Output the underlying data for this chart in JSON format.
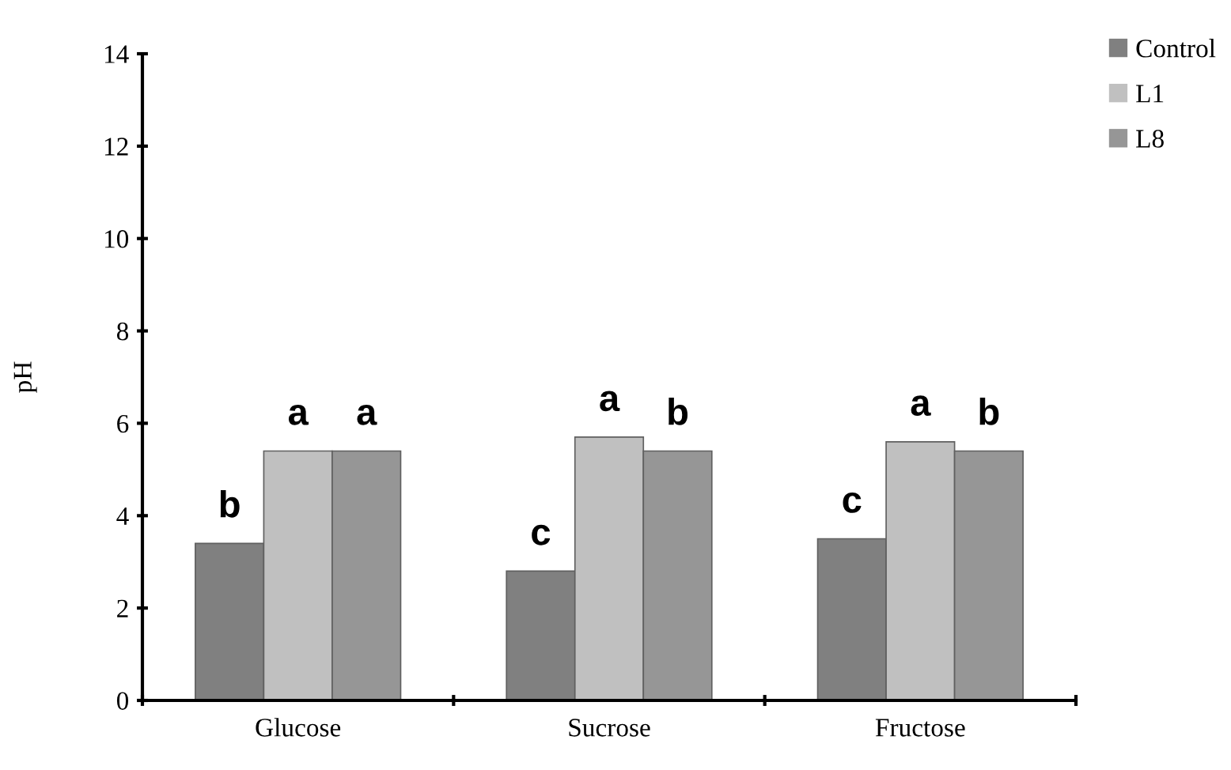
{
  "chart_data": {
    "type": "bar",
    "ylabel": "pH",
    "categories": [
      "Glucose",
      "Sucrose",
      "Fructose"
    ],
    "series": [
      {
        "name": "Control",
        "color": "#808080",
        "values": [
          3.4,
          2.8,
          3.5
        ]
      },
      {
        "name": "L1",
        "color": "#c0c0c0",
        "values": [
          5.4,
          5.7,
          5.6
        ]
      },
      {
        "name": "L8",
        "color": "#969696",
        "values": [
          5.4,
          5.4,
          5.4
        ]
      }
    ],
    "ylim": [
      0,
      14
    ],
    "yticks": [
      0,
      2,
      4,
      6,
      8,
      10,
      12,
      14
    ],
    "grid": false,
    "legend": "top right",
    "annotations": [
      "b",
      "a",
      "a",
      "c",
      "a",
      "b",
      "c",
      "a",
      "b"
    ]
  }
}
